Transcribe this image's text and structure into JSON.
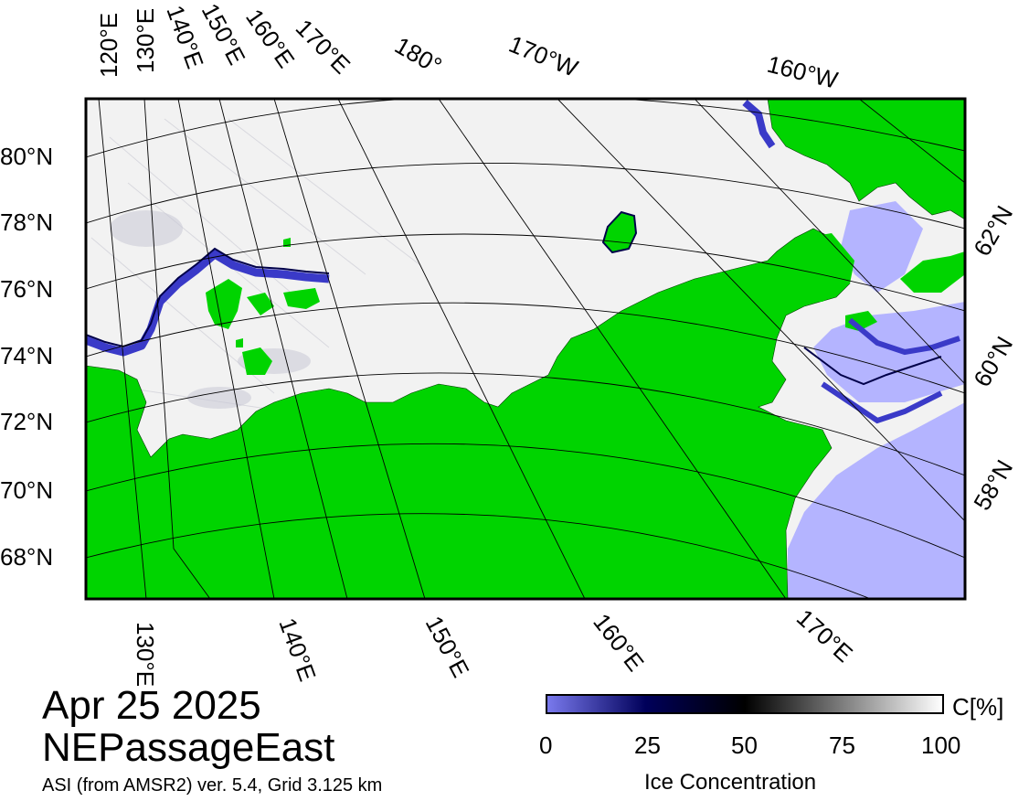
{
  "date": "Apr 25 2025",
  "region": "NEPassageEast",
  "credit": "ASI (from AMSR2) ver. 5.4,  Grid 3.125 km",
  "legend": {
    "title": "Ice Concentration",
    "unit": "C[%]",
    "ticks": [
      "0",
      "25",
      "50",
      "75",
      "100"
    ],
    "colors": {
      "low": "#7a7aee",
      "mid_low": "#00005a",
      "mid": "#000000",
      "high": "#ffffff"
    }
  },
  "map": {
    "colors": {
      "land": "#00d400",
      "open_water": "#b4b4ff",
      "ice_full": "#f2f2f2",
      "ice_edge": "#3a3ac8",
      "graticule": "#000000"
    },
    "top_lon_labels": [
      "120°E",
      "130°E",
      "140°E",
      "150°E",
      "160°E",
      "170°E",
      "180°",
      "170°W",
      "160°W"
    ],
    "left_lat_labels": [
      "80°N",
      "78°N",
      "76°N",
      "74°N",
      "72°N",
      "70°N",
      "68°N"
    ],
    "right_lat_labels": [
      "62°N",
      "60°N",
      "58°N"
    ],
    "bottom_lon_labels": [
      "130°E",
      "140°E",
      "150°E",
      "160°E",
      "170°E"
    ]
  }
}
